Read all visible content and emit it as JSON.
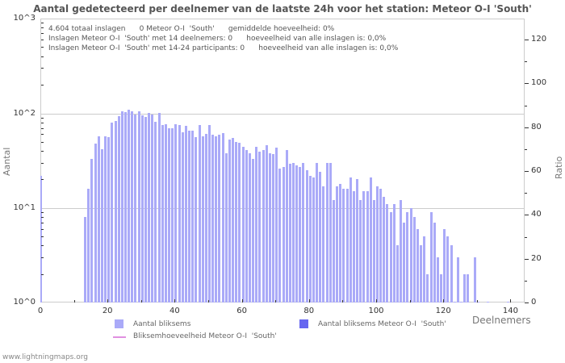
{
  "title": "Aantal gedetecteerd per deelnemer van de laatste 24h voor het station: Meteor O-I  'South'",
  "info_lines": [
    "4.604 totaal inslagen      0 Meteor O-I  'South'      gemiddelde hoeveelheid: 0%",
    "Inslagen Meteor O-I  'South' met 14 deelnemers: 0      hoeveelheid van alle inslagen is: 0,0%",
    "Inslagen Meteor O-I  'South' met 14-24 participants: 0      hoeveelheid van alle inslagen is: 0,0%"
  ],
  "legend": {
    "item1": "Aantal bliksems",
    "item2": "Aantal bliksems Meteor O-I  'South'",
    "item3": "Bliksemhoeveelheid Meteor O-I  'South'"
  },
  "footer": "www.lightningmaps.org",
  "colors": {
    "bar": "#aaaaf8",
    "station_bar": "#6666f0",
    "ratio_line": "#e090e0",
    "grid": "#cccccc"
  },
  "chart_data": {
    "type": "bar",
    "title": "Aantal gedetecteerd per deelnemer van de laatste 24h voor het station: Meteor O-I  'South'",
    "xlabel": "Deelnemers",
    "ylabel": "Aantal",
    "y2label": "Ratio [%]",
    "yscale": "log",
    "ylim": [
      1,
      1000
    ],
    "y_ticks": [
      "10^0",
      "10^1",
      "10^2",
      "10^3"
    ],
    "xlim": [
      0,
      144
    ],
    "x_ticks": [
      0,
      20,
      40,
      60,
      80,
      100,
      120,
      140
    ],
    "y2lim": [
      0,
      130
    ],
    "y2_ticks": [
      0,
      20,
      40,
      60,
      80,
      100,
      120
    ],
    "grid": true,
    "legend_position": "bottom",
    "series": [
      {
        "name": "Aantal bliksems",
        "x": [
          0,
          13,
          14,
          15,
          16,
          17,
          18,
          19,
          20,
          21,
          22,
          23,
          24,
          25,
          26,
          27,
          28,
          29,
          30,
          31,
          32,
          33,
          34,
          35,
          36,
          37,
          38,
          39,
          40,
          41,
          42,
          43,
          44,
          45,
          46,
          47,
          48,
          49,
          50,
          51,
          52,
          53,
          54,
          55,
          56,
          57,
          58,
          59,
          60,
          61,
          62,
          63,
          64,
          65,
          66,
          67,
          68,
          69,
          70,
          71,
          72,
          73,
          74,
          75,
          76,
          77,
          78,
          79,
          80,
          81,
          82,
          83,
          84,
          85,
          86,
          87,
          88,
          89,
          90,
          91,
          92,
          93,
          94,
          95,
          96,
          97,
          98,
          99,
          100,
          101,
          102,
          103,
          104,
          105,
          106,
          107,
          108,
          109,
          110,
          111,
          112,
          113,
          114,
          115,
          116,
          117,
          118,
          119,
          120,
          121,
          122,
          123,
          124,
          125,
          126,
          127,
          129,
          130,
          133,
          139
        ],
        "values": [
          22,
          8,
          16,
          33,
          48,
          57,
          42,
          57,
          56,
          80,
          83,
          93,
          105,
          102,
          109,
          105,
          97,
          105,
          95,
          92,
          100,
          97,
          81,
          100,
          75,
          76,
          70,
          70,
          77,
          75,
          63,
          74,
          65,
          65,
          56,
          75,
          57,
          61,
          75,
          59,
          57,
          59,
          62,
          38,
          53,
          55,
          50,
          49,
          44,
          41,
          38,
          33,
          44,
          39,
          41,
          46,
          38,
          37,
          43,
          26,
          27,
          41,
          29,
          30,
          28,
          27,
          30,
          25,
          22,
          21,
          30,
          24,
          17,
          30,
          30,
          12,
          17,
          18,
          16,
          16,
          21,
          15,
          20,
          12,
          15,
          15,
          21,
          12,
          17,
          16,
          13,
          11,
          9,
          11,
          4,
          12,
          7,
          9,
          10,
          8,
          6,
          4,
          5,
          2,
          9,
          7,
          3,
          2,
          6,
          5,
          4,
          1,
          3,
          1,
          2,
          2,
          3,
          1,
          1,
          1
        ]
      },
      {
        "name": "Aantal bliksems Meteor O-I  'South'",
        "values": []
      },
      {
        "name": "Bliksemhoeveelheid Meteor O-I  'South'",
        "values": []
      }
    ]
  }
}
